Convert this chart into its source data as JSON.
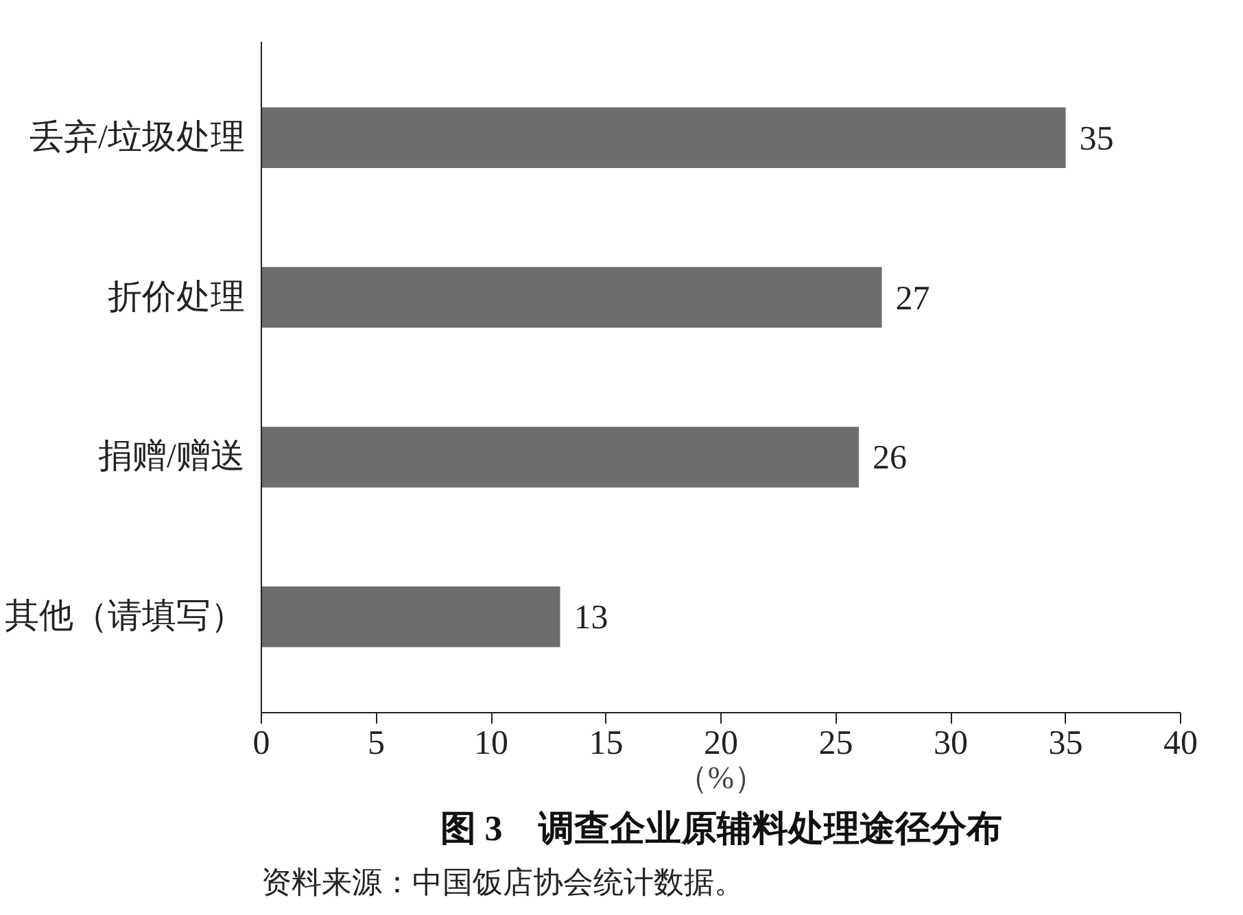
{
  "chart_data": {
    "type": "bar",
    "orientation": "horizontal",
    "title": "图 3　调查企业原辅料处理途径分布",
    "xlabel": "（%）",
    "categories": [
      "丢弃/垃圾处理",
      "折价处理",
      "捐赠/赠送",
      "其他（请填写）"
    ],
    "values": [
      35,
      27,
      26,
      13
    ],
    "color": "#6d6d6e",
    "data_labels": true,
    "xlim": [
      0,
      40
    ],
    "xticks": [
      0,
      5,
      10,
      15,
      20,
      25,
      30,
      35,
      40
    ],
    "grid": false,
    "annotations": [
      "资料来源：中国饭店协会统计数据。"
    ]
  }
}
